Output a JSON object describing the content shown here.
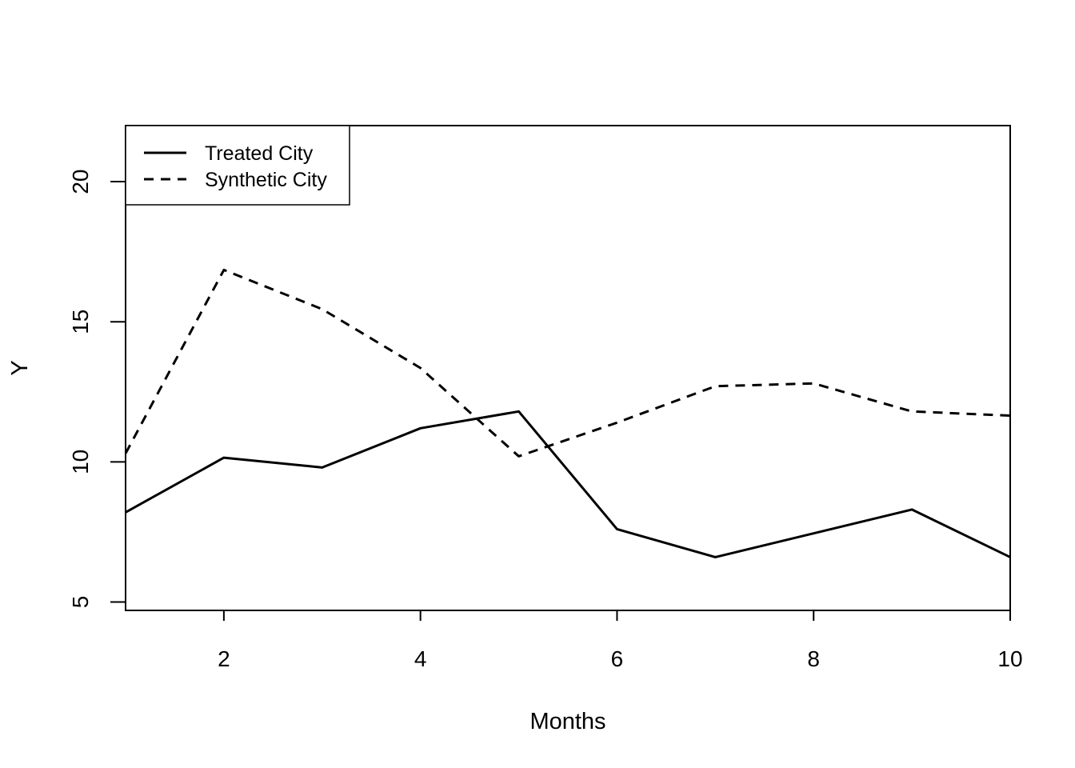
{
  "chart_data": {
    "type": "line",
    "title": "",
    "xlabel": "Months",
    "ylabel": "Y",
    "xlim": [
      1,
      10
    ],
    "ylim": [
      4.7,
      22
    ],
    "x_ticks": [
      2,
      4,
      6,
      8,
      10
    ],
    "y_ticks": [
      5,
      10,
      15,
      20
    ],
    "grid": false,
    "legend_position": "top-left",
    "x": [
      1,
      2,
      3,
      4,
      5,
      6,
      7,
      8,
      9,
      10
    ],
    "series": [
      {
        "name": "Treated City",
        "line_style": "solid",
        "color": "#000000",
        "values": [
          8.2,
          10.15,
          9.8,
          11.2,
          11.8,
          7.6,
          6.6,
          7.45,
          8.3,
          6.6
        ]
      },
      {
        "name": "Synthetic City",
        "line_style": "dashed",
        "color": "#000000",
        "values": [
          10.3,
          16.85,
          15.45,
          13.35,
          10.2,
          11.4,
          12.7,
          12.8,
          11.8,
          11.65
        ]
      }
    ]
  }
}
